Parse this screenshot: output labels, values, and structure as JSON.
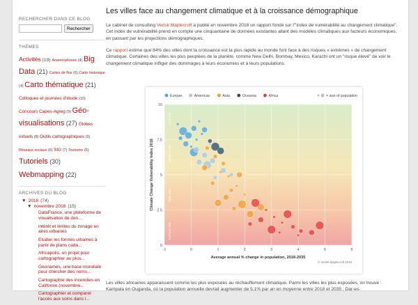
{
  "sidebar": {
    "search_title": "RECHERCHER DANS CE BLOG",
    "search_button": "Rechercher",
    "themes_title": "THÈMES",
    "tags": [
      {
        "label": "Activités",
        "count": "(19)",
        "size": 8.5
      },
      {
        "label": "Anamorphoses",
        "count": "(4)",
        "size": 5.3
      },
      {
        "label": "Big Data",
        "count": "(21)",
        "size": 11
      },
      {
        "label": "Cartes de flux",
        "count": "(6)",
        "size": 5.3
      },
      {
        "label": "Carto historique",
        "count": "(4)",
        "size": 5.3
      },
      {
        "label": "Carto thématique",
        "count": "(21)",
        "size": 11
      },
      {
        "label": "Colloques et journées d'étude",
        "count": "(10)",
        "size": 6.4
      },
      {
        "label": "Concours Capes-Agreg",
        "count": "(9)",
        "size": 6.4
      },
      {
        "label": "Géo-visualisations",
        "count": "(27)",
        "size": 11
      },
      {
        "label": "Globes virtuels",
        "count": "(8)",
        "size": 6.4
      },
      {
        "label": "Outils cartographiques",
        "count": "(9)",
        "size": 6.4
      },
      {
        "label": "Réseaux sociaux",
        "count": "(6)",
        "size": 5.3
      },
      {
        "label": "SIG",
        "count": "(7)",
        "size": 6.4
      },
      {
        "label": "Tourisme",
        "count": "(6)",
        "size": 5.3
      },
      {
        "label": "Tutoriels",
        "count": "(30)",
        "size": 11
      },
      {
        "label": "Webmapping",
        "count": "(22)",
        "size": 11
      }
    ],
    "archive_title": "ARCHIVES DU BLOG",
    "year": {
      "toggle": "▼",
      "label": "2018",
      "count": "(74)"
    },
    "month": {
      "toggle": "▼",
      "label": "novembre 2018",
      "count": "(15)"
    },
    "posts": [
      "DataFrance, une plateforme de visualisation de don...",
      "intérêt et limites du zonage en aires urbaines",
      "Etudier les formes urbaines à partir de plans cada...",
      "Africapolis, un projet pour cartographier au plus...",
      "Geonames, une base mondiale pour chercher des noms...",
      "Cartographie des incendies en Californie (novembre...",
      "Cartographier et comparer l'accès aux soins dans l..."
    ]
  },
  "post": {
    "title": "Les villes face au changement climatique et à la croissance démographique",
    "p1_a": "Le cabinet de consulting ",
    "p1_link": "Verisk Maplecroft",
    "p1_b": " a publié en novembre 2018 un rapport fondé sur l'\"index de vulnérabilité au changement climatique\". Cet index de vulnérabilité prend en compte une cinquantaine de données existantes allant des modèles climatiques aux facteurs économiques, en passant par les projections démographiques.",
    "p2_a": "Ce ",
    "p2_link": "rapport",
    "p2_b": " estime que 84% des villes dont la croissance est la plus rapide au monde font face à des risques « extrêmes » de changement climatique. Certaines des villes les plus peuplées de la planète, comme New Delhi, Bombay, Mexico, Karachi ont un \"risque élevé\" de voir le changement climatique infliger des dommages à leurs économies et à leurs populations.",
    "p3": "Les villes africaines apparaissent comme les plus exposées au réchauffement climatique. Parmi les villes les plus exposées, on trouve : Kampala en Ouganda, où la population annuelle devrait augmenter de 5,1% par an en moyenne entre 2018 et 2035 ; Dar-es-"
  },
  "chart_data": {
    "type": "scatter",
    "legend": [
      {
        "name": "Europe",
        "color": "#4aa3df"
      },
      {
        "name": "Americas",
        "color": "#a8c8dc"
      },
      {
        "name": "Asia",
        "color": "#f39c34"
      },
      {
        "name": "Oceania",
        "color": "#2e4a66"
      },
      {
        "name": "Africa",
        "color": "#e23a3a"
      }
    ],
    "size_legend": "= size of population",
    "xlabel": "Average annual % change in population, 2018-2035",
    "ylabel": "Climate Change Vulnerability Index 2018",
    "xlim": [
      -1,
      6
    ],
    "ylim": [
      0,
      10
    ],
    "xticks": [
      "-1",
      "0",
      "1",
      "2",
      "3",
      "4",
      "5",
      "6"
    ],
    "yticks": [
      "0",
      "2.5",
      "5",
      "7.5",
      "10"
    ],
    "risk_bands": [
      "Low risk",
      "Medium risk",
      "High risk",
      "Extreme risk"
    ],
    "copyright": "© Verisk Maplecroft 2018",
    "series": [
      {
        "name": "Europe",
        "points": [
          [
            -0.5,
            8.6
          ],
          [
            -0.3,
            8.1
          ],
          [
            -0.1,
            7.8
          ],
          [
            0.1,
            8.3
          ],
          [
            0.2,
            7.5
          ],
          [
            0.0,
            7.0
          ],
          [
            0.3,
            8.8
          ],
          [
            -0.2,
            7.2
          ],
          [
            0.4,
            7.9
          ],
          [
            0.1,
            6.6
          ],
          [
            -0.4,
            7.6
          ],
          [
            0.5,
            8.2
          ]
        ]
      },
      {
        "name": "Americas",
        "points": [
          [
            0.2,
            6.8
          ],
          [
            0.5,
            6.4
          ],
          [
            0.8,
            6.0
          ],
          [
            1.0,
            6.9
          ],
          [
            0.6,
            5.7
          ],
          [
            1.2,
            5.3
          ],
          [
            0.9,
            4.8
          ],
          [
            0.3,
            5.9
          ],
          [
            1.5,
            5.0
          ],
          [
            0.7,
            7.2
          ]
        ]
      },
      {
        "name": "Asia",
        "points": [
          [
            0.6,
            6.9
          ],
          [
            0.9,
            6.3
          ],
          [
            1.2,
            5.8
          ],
          [
            1.4,
            4.9
          ],
          [
            1.7,
            4.2
          ],
          [
            2.0,
            3.6
          ],
          [
            2.3,
            3.2
          ],
          [
            1.1,
            5.2
          ],
          [
            1.5,
            3.9
          ],
          [
            0.8,
            4.4
          ],
          [
            1.9,
            2.9
          ],
          [
            2.6,
            2.7
          ],
          [
            1.3,
            3.4
          ],
          [
            2.2,
            2.2
          ],
          [
            1.0,
            3.0
          ],
          [
            1.6,
            2.6
          ],
          [
            0.5,
            5.5
          ],
          [
            1.8,
            5.0
          ]
        ]
      },
      {
        "name": "Oceania",
        "points": [
          [
            0.9,
            7.0
          ],
          [
            1.1,
            6.7
          ],
          [
            0.7,
            7.4
          ]
        ]
      },
      {
        "name": "Africa",
        "points": [
          [
            2.4,
            3.0
          ],
          [
            2.8,
            2.5
          ],
          [
            3.1,
            2.0
          ],
          [
            3.4,
            1.6
          ],
          [
            3.8,
            1.3
          ],
          [
            4.1,
            1.0
          ],
          [
            4.5,
            0.9
          ],
          [
            3.0,
            1.1
          ],
          [
            2.6,
            1.8
          ],
          [
            3.6,
            2.2
          ],
          [
            4.0,
            0.7
          ],
          [
            3.3,
            0.9
          ],
          [
            2.2,
            1.5
          ],
          [
            4.8,
            1.4
          ]
        ]
      }
    ]
  }
}
